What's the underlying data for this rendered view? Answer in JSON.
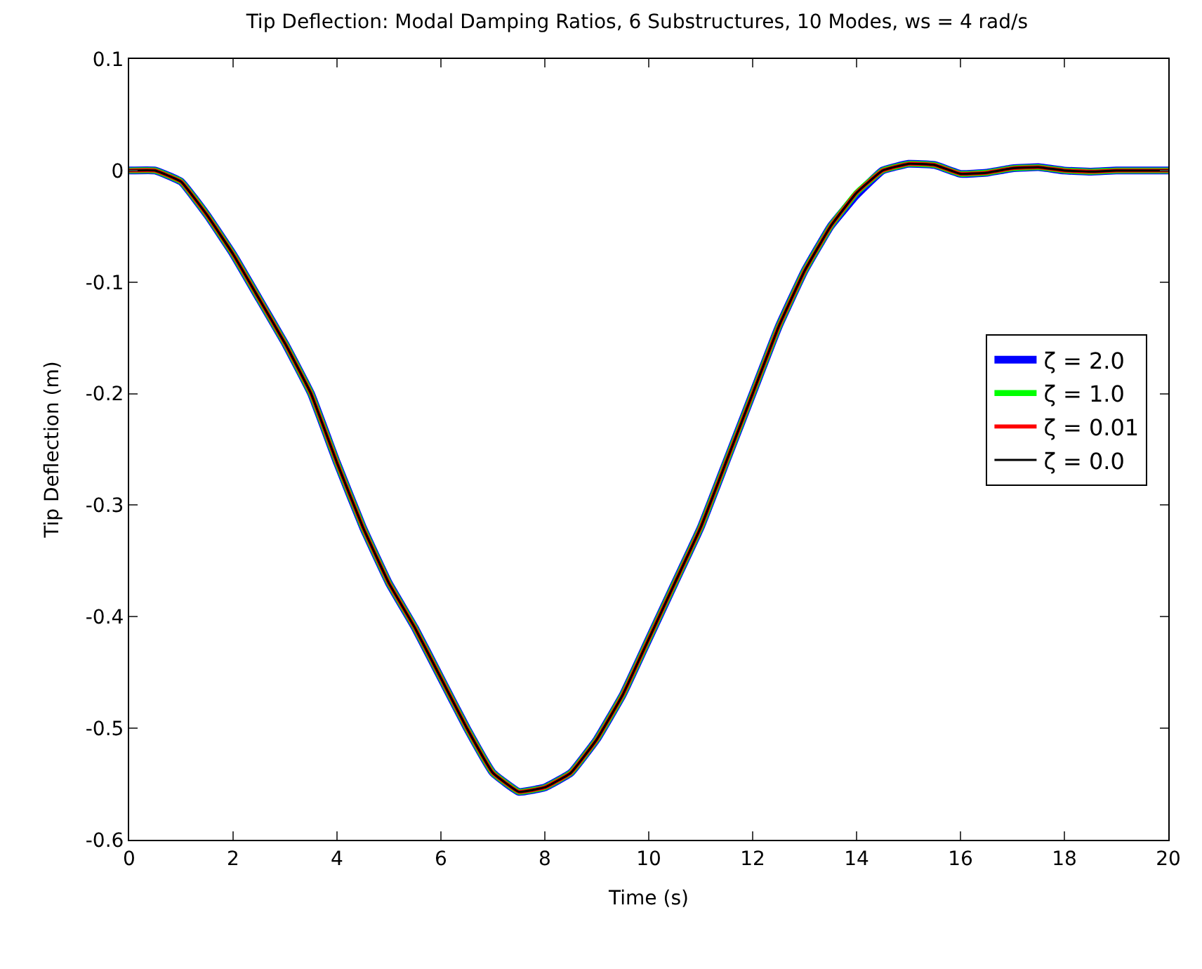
{
  "chart_data": {
    "type": "line",
    "title": "Tip Deflection: Modal Damping Ratios, 6 Substructures, 10 Modes, ws = 4 rad/s",
    "xlabel": "Time (s)",
    "ylabel": "Tip Deflection (m)",
    "x": [
      0,
      0.5,
      1,
      1.5,
      2,
      2.5,
      3,
      3.5,
      4,
      4.5,
      5,
      5.5,
      6,
      6.5,
      7,
      7.5,
      8,
      8.5,
      9,
      9.5,
      10,
      10.5,
      11,
      11.5,
      12,
      12.5,
      13,
      13.5,
      14,
      14.5,
      15,
      15.5,
      16,
      16.5,
      17,
      17.5,
      18,
      18.5,
      19,
      20
    ],
    "series": [
      {
        "name": "ζ = 2.0",
        "color": "#0000ff",
        "values": [
          0,
          0,
          -0.01,
          -0.04,
          -0.075,
          -0.115,
          -0.155,
          -0.2,
          -0.262,
          -0.32,
          -0.37,
          -0.41,
          -0.455,
          -0.5,
          -0.54,
          -0.557,
          -0.553,
          -0.54,
          -0.51,
          -0.47,
          -0.42,
          -0.37,
          -0.32,
          -0.26,
          -0.2,
          -0.14,
          -0.09,
          -0.05,
          -0.022,
          0,
          0.006,
          0.005,
          -0.003,
          -0.002,
          0.002,
          0.003,
          0,
          -0.001,
          0,
          0
        ]
      },
      {
        "name": "ζ = 1.0",
        "color": "#00ff00",
        "values": [
          0,
          0,
          -0.01,
          -0.04,
          -0.075,
          -0.115,
          -0.155,
          -0.2,
          -0.262,
          -0.32,
          -0.37,
          -0.41,
          -0.455,
          -0.5,
          -0.54,
          -0.557,
          -0.553,
          -0.54,
          -0.51,
          -0.47,
          -0.42,
          -0.37,
          -0.32,
          -0.26,
          -0.2,
          -0.14,
          -0.09,
          -0.05,
          -0.02,
          0,
          0.006,
          0.005,
          -0.003,
          -0.002,
          0.002,
          0.003,
          0,
          -0.001,
          0,
          0
        ]
      },
      {
        "name": "ζ = 0.01",
        "color": "#ff0000",
        "values": [
          0,
          0,
          -0.01,
          -0.04,
          -0.075,
          -0.115,
          -0.155,
          -0.2,
          -0.262,
          -0.32,
          -0.37,
          -0.41,
          -0.455,
          -0.5,
          -0.54,
          -0.557,
          -0.553,
          -0.54,
          -0.51,
          -0.47,
          -0.42,
          -0.37,
          -0.32,
          -0.26,
          -0.2,
          -0.14,
          -0.09,
          -0.05,
          -0.02,
          0,
          0.006,
          0.005,
          -0.003,
          -0.002,
          0.002,
          0.003,
          0,
          -0.001,
          0,
          0
        ]
      },
      {
        "name": "ζ = 0.0",
        "color": "#000000",
        "values": [
          0,
          0,
          -0.01,
          -0.04,
          -0.075,
          -0.115,
          -0.155,
          -0.2,
          -0.262,
          -0.32,
          -0.37,
          -0.41,
          -0.455,
          -0.5,
          -0.54,
          -0.557,
          -0.553,
          -0.54,
          -0.51,
          -0.47,
          -0.42,
          -0.37,
          -0.32,
          -0.26,
          -0.2,
          -0.14,
          -0.09,
          -0.05,
          -0.02,
          0,
          0.006,
          0.005,
          -0.003,
          -0.002,
          0.002,
          0.003,
          0,
          -0.001,
          0,
          0
        ]
      }
    ],
    "xlim": [
      0,
      20
    ],
    "xticks": [
      0,
      2,
      4,
      6,
      8,
      10,
      12,
      14,
      16,
      18,
      20
    ],
    "ylim": [
      -0.6,
      0.1
    ],
    "yticks": [
      -0.6,
      -0.5,
      -0.4,
      -0.3,
      -0.2,
      -0.1,
      0,
      0.1
    ],
    "legend": "right",
    "marker": "none",
    "line_style": "solid"
  }
}
